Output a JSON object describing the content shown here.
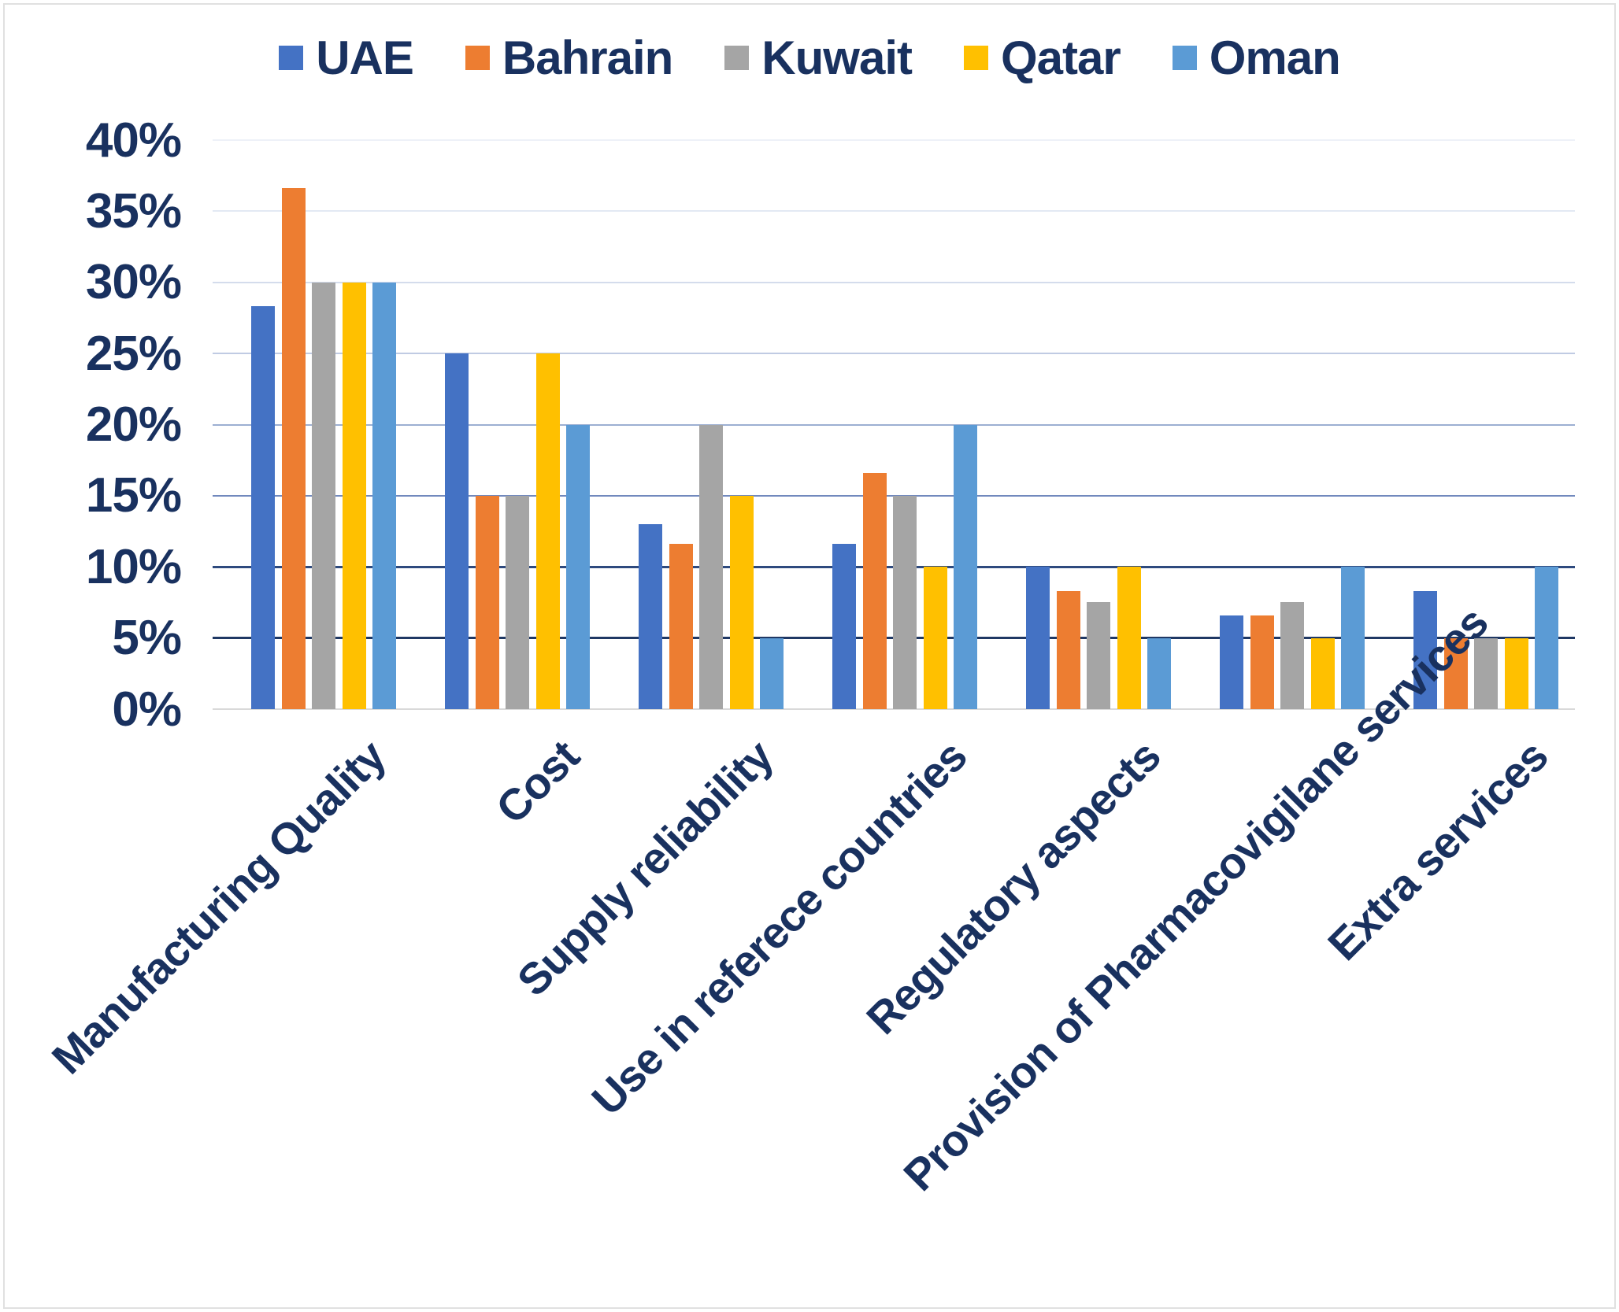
{
  "figure": {
    "background": "#FFFFFF",
    "border_color": "#E0E0E0",
    "text_color": "#19315F"
  },
  "chart_data": {
    "type": "bar",
    "title": "",
    "xlabel": "",
    "ylabel": "",
    "categories": [
      "Manufacturing Quality",
      "Cost",
      "Supply reliability",
      "Use in referece countries",
      "Regulatory aspects",
      "Provision of Pharmacovigilane services",
      "Extra services"
    ],
    "series": [
      {
        "name": "UAE",
        "color": "#4472C4",
        "values": [
          28.3,
          25,
          13,
          11.6,
          10,
          6.6,
          8.3
        ]
      },
      {
        "name": "Bahrain",
        "color": "#ED7D31",
        "values": [
          36.6,
          15,
          11.6,
          16.6,
          8.3,
          6.6,
          5
        ]
      },
      {
        "name": "Kuwait",
        "color": "#A5A5A5",
        "values": [
          30,
          15,
          20,
          15,
          7.5,
          7.5,
          5
        ]
      },
      {
        "name": "Qatar",
        "color": "#FFC000",
        "values": [
          30,
          25,
          15,
          10,
          10,
          5,
          5
        ]
      },
      {
        "name": "Oman",
        "color": "#5B9BD5",
        "values": [
          30,
          20,
          5,
          20,
          5,
          10,
          10
        ]
      }
    ],
    "y_axis": {
      "min": 0,
      "max": 40,
      "tick_step": 5,
      "unit": "%",
      "tick_labels": [
        "0%",
        "5%",
        "10%",
        "15%",
        "20%",
        "25%",
        "30%",
        "35%",
        "40%"
      ]
    },
    "legend": {
      "position": "top",
      "entries": [
        "UAE",
        "Bahrain",
        "Kuwait",
        "Qatar",
        "Oman"
      ]
    },
    "grid": true,
    "gridline_colors": {
      "40": "#EEF1F8",
      "35": "#E3E9F3",
      "30": "#D4DCEC",
      "25": "#C0CBE3",
      "20": "#9CAFD2",
      "15": "#7189BD",
      "10": "#2E4A7E",
      "5": "#1F3864",
      "0": "#D9D9D9"
    }
  }
}
